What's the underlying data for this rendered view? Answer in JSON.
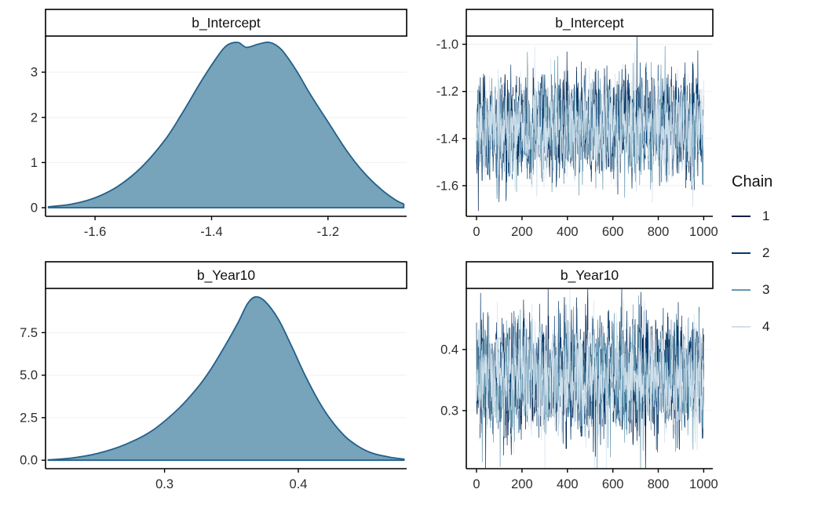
{
  "figure": {
    "background": "#ffffff",
    "axis_color": "#000000",
    "tick_text_color": "#2e2e2e",
    "grid_color": "#f0f0f0",
    "strip": {
      "background": "#ffffff",
      "border": "#000000",
      "text_color": "#101010"
    }
  },
  "legend": {
    "title": "Chain",
    "entries": [
      {
        "label": "1",
        "color": "#011f4b"
      },
      {
        "label": "2",
        "color": "#03396c"
      },
      {
        "label": "3",
        "color": "#6497b1"
      },
      {
        "label": "4",
        "color": "#d1e1ec"
      }
    ]
  },
  "density_style": {
    "fill": "#6497b1",
    "fill_opacity": 0.88,
    "stroke": "#23608c",
    "stroke_width": 1.8
  },
  "trace_style": {
    "line_width": 0.7
  },
  "chart_data": [
    {
      "id": "density-b_Intercept",
      "type": "area",
      "title": "b_Intercept",
      "xlabel": "",
      "ylabel": "",
      "grid": "horizontal-faint",
      "xlim": [
        -1.685,
        -1.065
      ],
      "ylim": [
        -0.19,
        3.8
      ],
      "xticks": [
        {
          "v": -1.6,
          "label": "-1.6"
        },
        {
          "v": -1.4,
          "label": "-1.4"
        },
        {
          "v": -1.2,
          "label": "-1.2"
        }
      ],
      "yticks": [
        {
          "v": 0,
          "label": "0"
        },
        {
          "v": 1,
          "label": "1"
        },
        {
          "v": 2,
          "label": "2"
        },
        {
          "v": 3,
          "label": "3"
        }
      ],
      "x": [
        -1.68,
        -1.64,
        -1.6,
        -1.56,
        -1.52,
        -1.48,
        -1.45,
        -1.42,
        -1.395,
        -1.375,
        -1.355,
        -1.34,
        -1.32,
        -1.3,
        -1.28,
        -1.255,
        -1.23,
        -1.2,
        -1.17,
        -1.14,
        -1.11,
        -1.085,
        -1.07
      ],
      "y": [
        0.02,
        0.08,
        0.22,
        0.48,
        0.9,
        1.5,
        2.1,
        2.75,
        3.25,
        3.58,
        3.66,
        3.55,
        3.62,
        3.66,
        3.5,
        3.05,
        2.5,
        1.9,
        1.3,
        0.8,
        0.42,
        0.18,
        0.08
      ]
    },
    {
      "id": "trace-b_Intercept",
      "type": "line",
      "title": "b_Intercept",
      "xlabel": "",
      "ylabel": "",
      "grid": "horizontal-faint",
      "xlim": [
        -45,
        1040
      ],
      "ylim": [
        -1.73,
        -0.965
      ],
      "xticks": [
        {
          "v": 0,
          "label": "0"
        },
        {
          "v": 200,
          "label": "200"
        },
        {
          "v": 400,
          "label": "400"
        },
        {
          "v": 600,
          "label": "600"
        },
        {
          "v": 800,
          "label": "800"
        },
        {
          "v": 1000,
          "label": "1000"
        }
      ],
      "yticks": [
        {
          "v": -1.0,
          "label": "-1.0"
        },
        {
          "v": -1.2,
          "label": "-1.2"
        },
        {
          "v": -1.4,
          "label": "-1.4"
        },
        {
          "v": -1.6,
          "label": "-1.6"
        }
      ],
      "trace": {
        "n_iterations": 1000,
        "n_chains": 4,
        "mean": -1.352,
        "sd": 0.103,
        "autocorr": 0.25,
        "seed": 42
      }
    },
    {
      "id": "density-b_Year10",
      "type": "area",
      "title": "b_Year10",
      "xlabel": "",
      "ylabel": "",
      "grid": "horizontal-faint",
      "xlim": [
        0.211,
        0.481
      ],
      "ylim": [
        -0.5,
        10.1
      ],
      "xticks": [
        {
          "v": 0.3,
          "label": "0.3"
        },
        {
          "v": 0.4,
          "label": "0.4"
        }
      ],
      "yticks": [
        {
          "v": 0.0,
          "label": "0.0"
        },
        {
          "v": 2.5,
          "label": "2.5"
        },
        {
          "v": 5.0,
          "label": "5.0"
        },
        {
          "v": 7.5,
          "label": "7.5"
        }
      ],
      "x": [
        0.213,
        0.23,
        0.25,
        0.27,
        0.29,
        0.31,
        0.325,
        0.335,
        0.345,
        0.355,
        0.362,
        0.368,
        0.375,
        0.385,
        0.395,
        0.405,
        0.415,
        0.425,
        0.435,
        0.445,
        0.455,
        0.468,
        0.479
      ],
      "y": [
        0.02,
        0.12,
        0.4,
        0.9,
        1.7,
        3.0,
        4.3,
        5.4,
        6.7,
        8.1,
        9.2,
        9.6,
        9.35,
        8.3,
        6.7,
        5.0,
        3.5,
        2.3,
        1.4,
        0.8,
        0.42,
        0.18,
        0.06
      ]
    },
    {
      "id": "trace-b_Year10",
      "type": "line",
      "title": "b_Year10",
      "xlabel": "",
      "ylabel": "",
      "grid": "horizontal-faint",
      "xlim": [
        -45,
        1040
      ],
      "ylim": [
        0.205,
        0.5
      ],
      "xticks": [
        {
          "v": 0,
          "label": "0"
        },
        {
          "v": 200,
          "label": "200"
        },
        {
          "v": 400,
          "label": "400"
        },
        {
          "v": 600,
          "label": "600"
        },
        {
          "v": 800,
          "label": "800"
        },
        {
          "v": 1000,
          "label": "1000"
        }
      ],
      "yticks": [
        {
          "v": 0.3,
          "label": "0.3"
        },
        {
          "v": 0.4,
          "label": "0.4"
        }
      ],
      "trace": {
        "n_iterations": 1000,
        "n_chains": 4,
        "mean": 0.356,
        "sd": 0.046,
        "autocorr": 0.25,
        "seed": 1337
      }
    }
  ]
}
